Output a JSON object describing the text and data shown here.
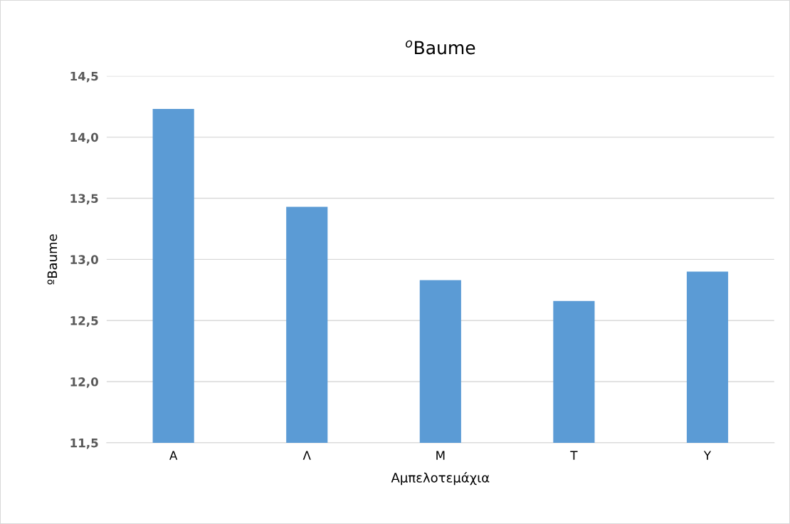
{
  "chart_data": {
    "type": "bar",
    "title": "$^{o}$Baume",
    "xlabel": "Αμπελοτεμάχια",
    "ylabel": "ºBaume",
    "categories": [
      "Α",
      "Λ",
      "Μ",
      "Τ",
      "Υ"
    ],
    "values": [
      14.23,
      13.43,
      12.83,
      12.66,
      12.9
    ],
    "color": "#5b9bd5",
    "ylim": [
      11.5,
      14.5
    ],
    "yticks": [
      {
        "value": 11.5,
        "label": "11,5"
      },
      {
        "value": 12.0,
        "label": "12,0"
      },
      {
        "value": 12.5,
        "label": "12,5"
      },
      {
        "value": 13.0,
        "label": "13,0"
      },
      {
        "value": 13.5,
        "label": "13,5"
      },
      {
        "value": 14.0,
        "label": "14,0"
      },
      {
        "value": 14.5,
        "label": "14,5"
      }
    ],
    "grid": "y"
  }
}
